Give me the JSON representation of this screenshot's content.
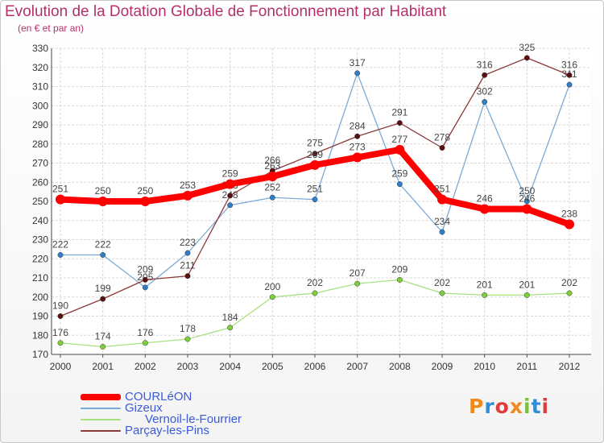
{
  "title": "Evolution de la Dotation Globale de Fonctionnement par Habitant",
  "subtitle": "(en € et par an)",
  "logo": {
    "text": "Proxiti",
    "colors": [
      "#f08a1c",
      "#2f8fd6",
      "#e23b3b",
      "#f08a1c",
      "#7cbf3a",
      "#2f8fd6",
      "#e23b3b"
    ]
  },
  "chart_data": {
    "type": "line",
    "title": "Evolution de la Dotation Globale de Fonctionnement par Habitant",
    "subtitle": "(en € et par an)",
    "xlabel": "",
    "ylabel": "",
    "x": [
      "2000",
      "2001",
      "2002",
      "2003",
      "2004",
      "2005",
      "2006",
      "2007",
      "2008",
      "2009",
      "2010",
      "2011",
      "2012"
    ],
    "ylim": [
      170,
      330
    ],
    "yticks": [
      170,
      180,
      190,
      200,
      210,
      220,
      230,
      240,
      250,
      260,
      270,
      280,
      290,
      300,
      310,
      320,
      330
    ],
    "grid": true,
    "legend_position": "bottom-left",
    "series": [
      {
        "name": "COURLéON",
        "color": "#ff0000",
        "marker": "#ff0000",
        "width": 8,
        "values": [
          251,
          250,
          250,
          253,
          259,
          263,
          269,
          273,
          277,
          251,
          246,
          246,
          238
        ]
      },
      {
        "name": "Gizeux",
        "color": "#7aaad8",
        "marker": "#2f7fc8",
        "width": 1.3,
        "values": [
          222,
          222,
          205,
          223,
          248,
          252,
          251,
          317,
          259,
          234,
          302,
          250,
          311
        ]
      },
      {
        "name": "      Vernoil-le-Fourrier",
        "color": "#a8e080",
        "marker": "#7cd13a",
        "width": 1.3,
        "values": [
          176,
          174,
          176,
          178,
          184,
          200,
          202,
          207,
          209,
          202,
          201,
          201,
          202
        ]
      },
      {
        "name": "Parçay-les-Pins",
        "color": "#8b3a3a",
        "marker": "#5a1010",
        "width": 1.3,
        "values": [
          190,
          199,
          209,
          211,
          253,
          266,
          275,
          284,
          291,
          278,
          316,
          325,
          316
        ]
      }
    ]
  }
}
